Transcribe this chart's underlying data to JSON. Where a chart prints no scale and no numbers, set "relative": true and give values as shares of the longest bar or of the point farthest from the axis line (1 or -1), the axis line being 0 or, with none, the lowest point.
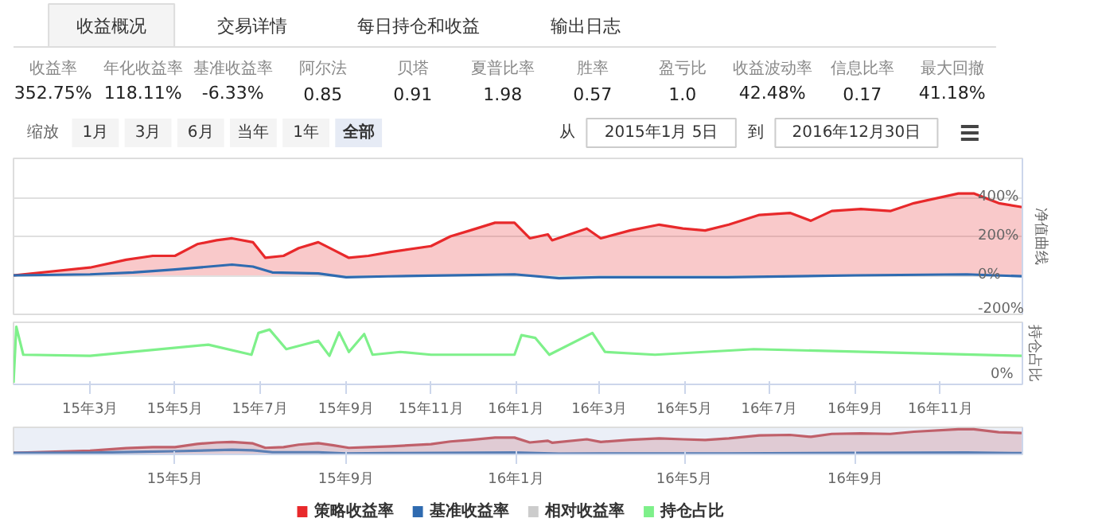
{
  "chart_data": [
    {
      "type": "other",
      "categories": [
        "收益概况",
        "交易详情",
        "每日持仓和收益",
        "输出日志"
      ]
    },
    {
      "type": "other",
      "categories": [
        "收益率",
        "年化收益率",
        "基准收益率",
        "阿尔法",
        "贝塔",
        "夏普比率",
        "胜率",
        "盈亏比",
        "收益波动率",
        "信息比率",
        "最大回撤"
      ],
      "value_labels": [
        "352.75%",
        "118.11%",
        "-6.33%",
        "0.85",
        "0.91",
        "1.98",
        "0.57",
        "1.0",
        "42.48%",
        "0.17",
        "41.18%"
      ]
    },
    {
      "type": "other",
      "annotations": [
        "缩放",
        "1月",
        "3月",
        "6月",
        "当年",
        "1年",
        "全部",
        "从",
        "2015年1月 5日",
        "到",
        "2016年12月30日"
      ]
    },
    {
      "type": "line",
      "ylabel": "净值曲线",
      "xlim": [
        "2015-01-05",
        "2016-12-30"
      ],
      "ylim": [
        -200,
        600
      ],
      "yticks": [
        {
          "value": -200,
          "label": "-200%"
        },
        {
          "value": 0,
          "label": "0%"
        },
        {
          "value": 200,
          "label": "200%"
        },
        {
          "value": 400,
          "label": "400%"
        },
        {
          "value": 600,
          "label": null
        }
      ],
      "tick_labels": "y",
      "grid": "y",
      "legend": "bottom",
      "series": [
        {
          "name": "策略收益率",
          "type": "area",
          "color": "#e8292b",
          "x": [
            "2015-01-05",
            "2015-03-01",
            "2015-03-27",
            "2015-04-15",
            "2015-05-01",
            "2015-05-17",
            "2015-05-31",
            "2015-06-11",
            "2015-06-26",
            "2015-07-05",
            "2015-07-18",
            "2015-07-29",
            "2015-08-12",
            "2015-08-23",
            "2015-09-03",
            "2015-09-17",
            "2015-10-03",
            "2015-11-01",
            "2015-11-15",
            "2015-11-29",
            "2015-12-17",
            "2015-12-31",
            "2016-01-11",
            "2016-01-24",
            "2016-01-27",
            "2016-02-21",
            "2016-03-02",
            "2016-03-23",
            "2016-04-13",
            "2016-04-30",
            "2016-05-16",
            "2016-06-02",
            "2016-06-24",
            "2016-07-16",
            "2016-07-31",
            "2016-08-15",
            "2016-09-05",
            "2016-09-26",
            "2016-10-13",
            "2016-11-14",
            "2016-11-25",
            "2016-12-13",
            "2016-12-30"
          ],
          "values": [
            0,
            40,
            80,
            100,
            100,
            160,
            180,
            190,
            170,
            90,
            100,
            140,
            170,
            130,
            90,
            100,
            120,
            150,
            200,
            230,
            270,
            270,
            190,
            210,
            180,
            240,
            190,
            230,
            260,
            240,
            230,
            260,
            310,
            320,
            280,
            330,
            340,
            330,
            370,
            420,
            420,
            370,
            350
          ]
        },
        {
          "name": "基准收益率",
          "type": "line",
          "color": "#2f6bb0",
          "x": [
            "2015-01-05",
            "2015-03-01",
            "2015-04-01",
            "2015-05-01",
            "2015-06-11",
            "2015-06-26",
            "2015-07-10",
            "2015-08-12",
            "2015-09-01",
            "2015-10-01",
            "2015-12-31",
            "2016-02-01",
            "2016-03-01",
            "2016-06-01",
            "2016-09-01",
            "2016-11-20",
            "2016-12-30"
          ],
          "values": [
            0,
            5,
            15,
            30,
            55,
            45,
            15,
            10,
            -10,
            -5,
            5,
            -15,
            -10,
            -10,
            0,
            5,
            -5
          ]
        },
        {
          "name": "相对收益率",
          "type": "line",
          "color": "#cccccc"
        }
      ]
    },
    {
      "type": "line",
      "relative": true,
      "ylabel": "持仓占比",
      "annotations": [
        "0%"
      ],
      "xlim": [
        "2015-01-05",
        "2016-12-30"
      ],
      "xticks": [
        {
          "value": "2015-03-01",
          "label": "15年3月"
        },
        {
          "value": "2015-05-01",
          "label": "15年5月"
        },
        {
          "value": "2015-07-01",
          "label": "15年7月"
        },
        {
          "value": "2015-09-01",
          "label": "15年9月"
        },
        {
          "value": "2015-11-01",
          "label": "15年11月"
        },
        {
          "value": "2016-01-01",
          "label": "16年1月"
        },
        {
          "value": "2016-03-01",
          "label": "16年3月"
        },
        {
          "value": "2016-05-01",
          "label": "16年5月"
        },
        {
          "value": "2016-07-01",
          "label": "16年7月"
        },
        {
          "value": "2016-09-01",
          "label": "16年9月"
        },
        {
          "value": "2016-11-01",
          "label": "16年11月"
        }
      ],
      "tick_labels": "x",
      "legend": "bottom",
      "series": [
        {
          "name": "持仓占比",
          "color": "#7ef08a",
          "x": [
            "2015-01-05",
            "2015-01-07",
            "2015-01-12",
            "2015-03-01",
            "2015-05-25",
            "2015-06-25",
            "2015-06-30",
            "2015-07-08",
            "2015-07-20",
            "2015-08-12",
            "2015-08-20",
            "2015-08-27",
            "2015-09-03",
            "2015-09-14",
            "2015-09-20",
            "2015-10-10",
            "2015-11-01",
            "2015-12-31",
            "2016-01-05",
            "2016-01-15",
            "2016-01-25",
            "2016-02-25",
            "2016-03-05",
            "2016-04-10",
            "2016-06-20",
            "2016-12-30"
          ],
          "values": [
            0,
            1.0,
            0.5,
            0.48,
            0.68,
            0.5,
            0.89,
            0.95,
            0.6,
            0.75,
            0.48,
            0.9,
            0.55,
            0.87,
            0.5,
            0.55,
            0.5,
            0.5,
            0.85,
            0.8,
            0.5,
            0.89,
            0.55,
            0.5,
            0.6,
            0.48
          ]
        }
      ]
    },
    {
      "type": "area",
      "relative": true,
      "xlim": [
        "2015-01-05",
        "2016-12-30"
      ],
      "xticks": [
        {
          "value": "2015-05-01",
          "label": "15年5月"
        },
        {
          "value": "2015-09-01",
          "label": "15年9月"
        },
        {
          "value": "2016-01-01",
          "label": "16年1月"
        },
        {
          "value": "2016-05-01",
          "label": "16年5月"
        },
        {
          "value": "2016-09-01",
          "label": "16年9月"
        }
      ],
      "tick_labels": "x",
      "series": [
        {
          "type": "area",
          "color": "#c0606a",
          "x": [
            "2015-01-05",
            "2015-03-01",
            "2015-03-27",
            "2015-04-15",
            "2015-05-01",
            "2015-05-17",
            "2015-05-31",
            "2015-06-11",
            "2015-06-26",
            "2015-07-05",
            "2015-07-18",
            "2015-07-29",
            "2015-08-12",
            "2015-08-23",
            "2015-09-03",
            "2015-09-17",
            "2015-10-03",
            "2015-11-01",
            "2015-11-15",
            "2015-11-29",
            "2015-12-17",
            "2015-12-31",
            "2016-01-11",
            "2016-01-24",
            "2016-01-27",
            "2016-02-21",
            "2016-03-02",
            "2016-03-23",
            "2016-04-13",
            "2016-04-30",
            "2016-05-16",
            "2016-06-02",
            "2016-06-24",
            "2016-07-16",
            "2016-07-31",
            "2016-08-15",
            "2016-09-05",
            "2016-09-26",
            "2016-10-13",
            "2016-11-14",
            "2016-11-25",
            "2016-12-13",
            "2016-12-30"
          ],
          "values": [
            0.03,
            0.12,
            0.23,
            0.27,
            0.27,
            0.4,
            0.46,
            0.48,
            0.42,
            0.24,
            0.27,
            0.37,
            0.43,
            0.34,
            0.24,
            0.27,
            0.3,
            0.39,
            0.5,
            0.56,
            0.66,
            0.66,
            0.46,
            0.53,
            0.45,
            0.59,
            0.48,
            0.57,
            0.63,
            0.59,
            0.56,
            0.63,
            0.75,
            0.77,
            0.69,
            0.81,
            0.83,
            0.81,
            0.9,
            1.0,
            1.0,
            0.88,
            0.85
          ]
        },
        {
          "type": "line",
          "color": "#5a7fb5",
          "x": [
            "2015-01-05",
            "2015-03-01",
            "2015-04-01",
            "2015-05-01",
            "2015-06-11",
            "2015-06-26",
            "2015-07-10",
            "2015-08-12",
            "2015-09-01",
            "2015-10-01",
            "2015-12-31",
            "2016-02-01",
            "2016-03-01",
            "2016-06-01",
            "2016-09-01",
            "2016-11-20",
            "2016-12-30"
          ],
          "values": [
            0.03,
            0.04,
            0.07,
            0.1,
            0.16,
            0.14,
            0.06,
            0.06,
            0.01,
            0.02,
            0.05,
            0.0,
            0.01,
            0.01,
            0.03,
            0.05,
            0.02
          ]
        }
      ]
    }
  ]
}
